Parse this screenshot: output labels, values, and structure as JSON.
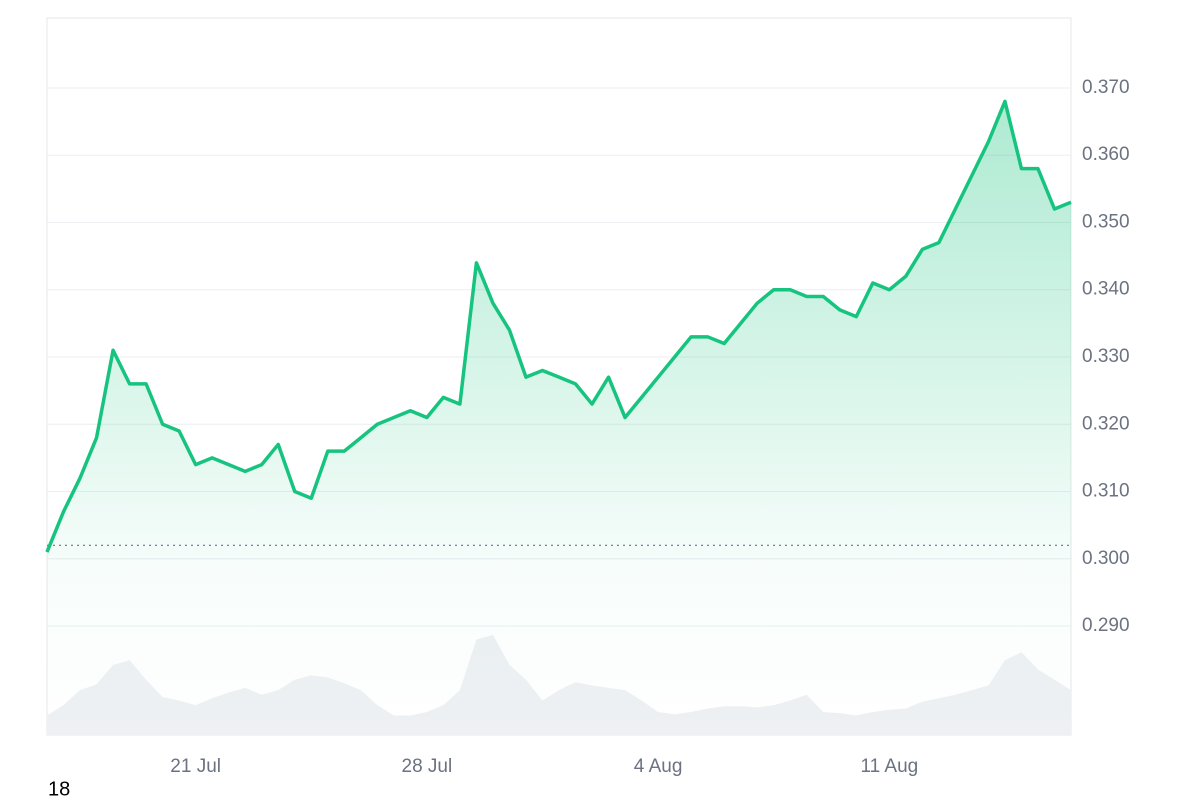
{
  "chart_data": {
    "type": "line",
    "categories": [
      null,
      null,
      null,
      null,
      null,
      null,
      null,
      null,
      null,
      "21 Jul",
      null,
      null,
      null,
      null,
      null,
      null,
      null,
      null,
      null,
      null,
      null,
      null,
      null,
      "28 Jul",
      null,
      null,
      null,
      null,
      null,
      null,
      null,
      null,
      null,
      null,
      null,
      null,
      null,
      "4 Aug",
      null,
      null,
      null,
      null,
      null,
      null,
      null,
      null,
      null,
      null,
      null,
      null,
      null,
      "11 Aug",
      null,
      null,
      null,
      null,
      null,
      null,
      null,
      null,
      null,
      null,
      null
    ],
    "series": [
      {
        "name": "price",
        "color": "#16c47f",
        "values": [
          0.301,
          0.307,
          0.312,
          0.318,
          0.331,
          0.326,
          0.326,
          0.32,
          0.319,
          0.314,
          0.315,
          0.314,
          0.313,
          0.314,
          0.317,
          0.31,
          0.309,
          0.316,
          0.316,
          0.318,
          0.32,
          0.321,
          0.322,
          0.321,
          0.324,
          0.323,
          0.344,
          0.338,
          0.334,
          0.327,
          0.328,
          0.327,
          0.326,
          0.323,
          0.327,
          0.321,
          0.324,
          0.327,
          0.33,
          0.333,
          0.333,
          0.332,
          0.335,
          0.338,
          0.34,
          0.34,
          0.339,
          0.339,
          0.337,
          0.336,
          0.341,
          0.34,
          0.342,
          0.346,
          0.347,
          0.352,
          0.357,
          0.362,
          0.368,
          0.358,
          0.358,
          0.352,
          0.353
        ]
      },
      {
        "name": "volume",
        "color": "#eef0f3",
        "axis": "y2",
        "values": [
          17,
          26,
          39,
          44,
          61,
          65,
          48,
          33,
          30,
          26,
          32,
          37,
          41,
          35,
          39,
          48,
          52,
          50,
          45,
          39,
          26,
          17,
          17,
          20,
          26,
          39,
          83,
          87,
          61,
          48,
          30,
          39,
          46,
          43,
          41,
          39,
          30,
          20,
          18,
          20,
          23,
          25,
          25,
          24,
          26,
          30,
          35,
          20,
          19,
          17,
          20,
          22,
          23,
          29,
          32,
          35,
          39,
          43,
          65,
          72,
          57,
          48,
          39
        ]
      }
    ],
    "baseline": 0.302,
    "ylim": [
      0.2738,
      0.3804
    ],
    "yticks": [
      {
        "value": 0.29,
        "label": "0.290"
      },
      {
        "value": 0.3,
        "label": "0.300"
      },
      {
        "value": 0.31,
        "label": "0.310"
      },
      {
        "value": 0.32,
        "label": "0.320"
      },
      {
        "value": 0.33,
        "label": "0.330"
      },
      {
        "value": 0.34,
        "label": "0.340"
      },
      {
        "value": 0.35,
        "label": "0.350"
      },
      {
        "value": 0.36,
        "label": "0.360"
      },
      {
        "value": 0.37,
        "label": "0.370"
      }
    ],
    "y2lim": [
      0,
      100
    ],
    "grid": true,
    "corner_label": "18"
  }
}
